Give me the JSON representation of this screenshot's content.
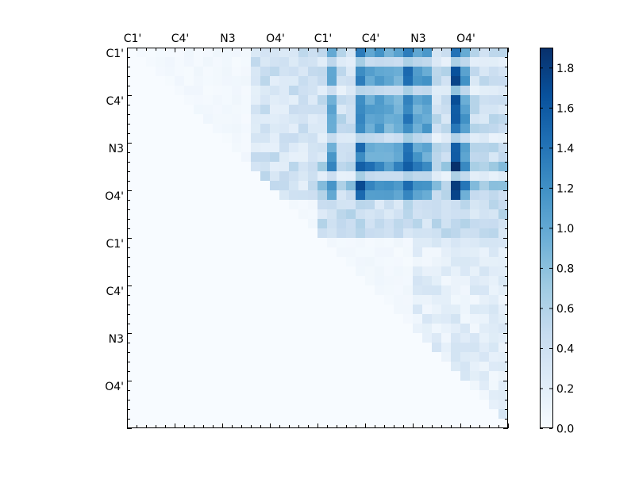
{
  "chart_data": [
    {
      "type": "heatmap",
      "title": "",
      "xlabel": "",
      "ylabel": "",
      "n_cells": 40,
      "x_tick_labels": [
        "C1'",
        "C4'",
        "N3",
        "O4'",
        "C1'",
        "C4'",
        "N3",
        "O4'"
      ],
      "x_tick_label_position": "top",
      "y_tick_labels": [
        "C1'",
        "C4'",
        "N3",
        "O4'",
        "C1'",
        "C4'",
        "N3",
        "O4'"
      ],
      "y_tick_label_position": "left",
      "colormap": "Blues",
      "colorscale": [
        "#f7fbff",
        "#deebf7",
        "#c6dbef",
        "#9ecae1",
        "#6baed6",
        "#4292c6",
        "#2171b5",
        "#08519c",
        "#08306b"
      ],
      "value_range": [
        0.0,
        1.9
      ],
      "note_matrix_shape": "upper-triangular",
      "values_summary": {
        "block_rows_1_to_16_cols_21_to_40": "high values (up to ~1.9), strongest at columns 25, 30, 35 and 35-36",
        "block_rows_17_to_40": "low values (~0.0-0.5) near diagonal",
        "lower_triangle": "0.0"
      }
    },
    {
      "type": "colorbar",
      "ticks": [
        "0.0",
        "0.2",
        "0.4",
        "0.6",
        "0.8",
        "1.0",
        "1.2",
        "1.4",
        "1.6",
        "1.8"
      ],
      "range": [
        0.0,
        1.9
      ]
    }
  ]
}
